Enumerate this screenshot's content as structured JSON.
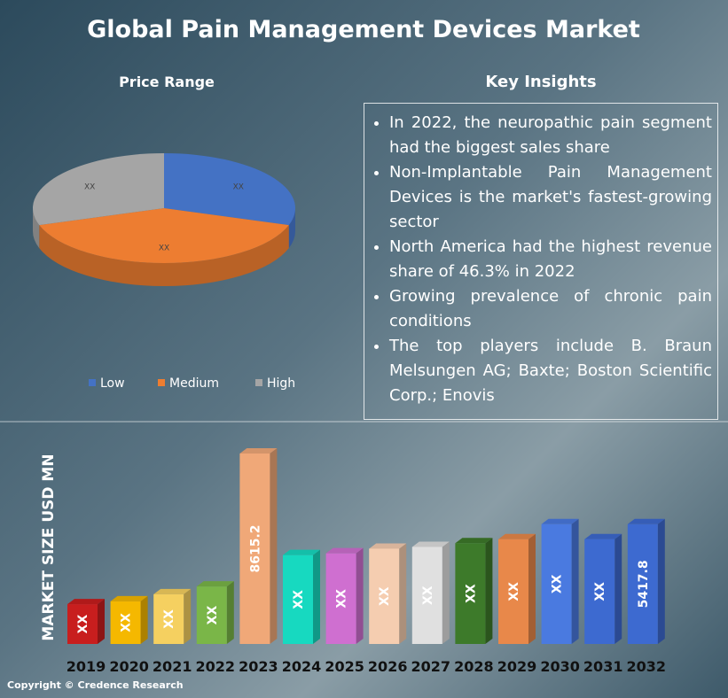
{
  "title": "Global Pain Management Devices Market",
  "chart_data": [
    {
      "type": "pie",
      "title": "Price Range",
      "categories": [
        "Low",
        "Medium",
        "High"
      ],
      "values": [
        30,
        40,
        30
      ],
      "value_labels": [
        "XX",
        "XX",
        "XX"
      ],
      "colors": [
        "#4472c4",
        "#ed7d31",
        "#a5a5a5"
      ],
      "legend": "bottom"
    },
    {
      "type": "bar",
      "y_label": "MARKET SIZE USD MN",
      "categories": [
        "2019",
        "2020",
        "2021",
        "2022",
        "2023",
        "2024",
        "2025",
        "2026",
        "2027",
        "2028",
        "2029",
        "2030",
        "2031",
        "2032"
      ],
      "values": [
        1800,
        1930,
        2250,
        2600,
        8615.2,
        4020,
        4100,
        4310,
        4390,
        4560,
        4740,
        5420,
        4740,
        5417.8
      ],
      "value_labels": [
        "XX",
        "XX",
        "XX",
        "XX",
        "8615.2",
        "XX",
        "XX",
        "XX",
        "XX",
        "XX",
        "XX",
        "XX",
        "XX",
        "5417.8"
      ],
      "colors": [
        "#c81e1e",
        "#f5b800",
        "#f5d060",
        "#7ab648",
        "#f0a878",
        "#17d9c0",
        "#cf6fd0",
        "#f5cdb0",
        "#e0e0e0",
        "#3d7a2a",
        "#e8884a",
        "#4a7ae0",
        "#3d6ad0",
        "#3d6ad0"
      ]
    }
  ],
  "insights": {
    "title": "Key Insights",
    "items": [
      "In 2022, the neuropathic pain segment had the biggest sales share",
      "Non-Implantable Pain Management Devices is the market's fastest-growing sector",
      "North America had the highest revenue share of 46.3% in 2022",
      "Growing prevalence of chronic pain conditions",
      "The top players include B. Braun Melsungen AG; Baxte; Boston Scientific Corp.; Enovis"
    ]
  },
  "copyright": "Copyright © Credence Research"
}
